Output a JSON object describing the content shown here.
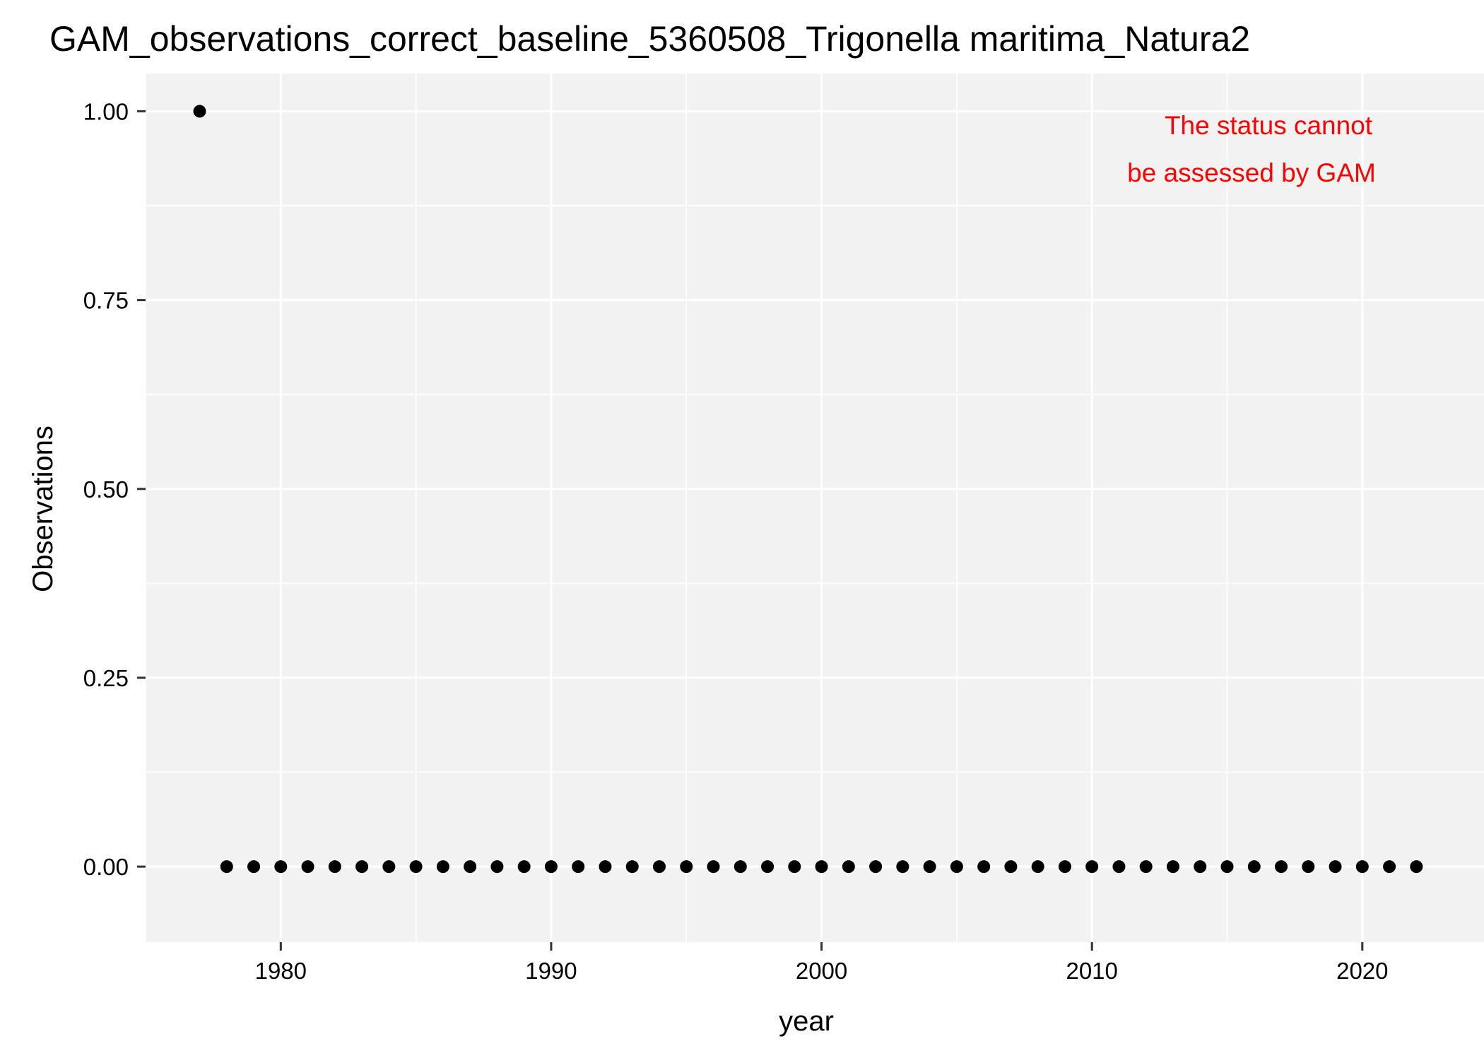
{
  "chart_data": {
    "type": "scatter",
    "title": "GAM_observations_correct_baseline_5360508_Trigonella maritima_Natura2",
    "xlabel": "year",
    "ylabel": "Observations",
    "xlim": [
      1975,
      2024.5
    ],
    "ylim": [
      -0.1,
      1.05
    ],
    "x_ticks": [
      1980,
      1990,
      2000,
      2010,
      2020
    ],
    "x_tick_labels": [
      "1980",
      "1990",
      "2000",
      "2010",
      "2020"
    ],
    "y_ticks": [
      0,
      0.25,
      0.5,
      0.75,
      1.0
    ],
    "y_tick_labels": [
      "0.00",
      "0.25",
      "0.50",
      "0.75",
      "1.00"
    ],
    "grid": true,
    "panel_background": "#f2f2f2",
    "grid_color": "#ffffff",
    "point_color": "#000000",
    "annotation": {
      "lines": [
        "The status cannot",
        "be assessed by GAM"
      ],
      "color": "#ff0000",
      "position": "top-right"
    },
    "x": [
      1977,
      1978,
      1979,
      1980,
      1981,
      1982,
      1983,
      1984,
      1985,
      1986,
      1987,
      1988,
      1989,
      1990,
      1991,
      1992,
      1993,
      1994,
      1995,
      1996,
      1997,
      1998,
      1999,
      2000,
      2001,
      2002,
      2003,
      2004,
      2005,
      2006,
      2007,
      2008,
      2009,
      2010,
      2011,
      2012,
      2013,
      2014,
      2015,
      2016,
      2017,
      2018,
      2019,
      2020,
      2021,
      2022
    ],
    "y": [
      1,
      0,
      0,
      0,
      0,
      0,
      0,
      0,
      0,
      0,
      0,
      0,
      0,
      0,
      0,
      0,
      0,
      0,
      0,
      0,
      0,
      0,
      0,
      0,
      0,
      0,
      0,
      0,
      0,
      0,
      0,
      0,
      0,
      0,
      0,
      0,
      0,
      0,
      0,
      0,
      0,
      0,
      0,
      0,
      0,
      0
    ]
  }
}
